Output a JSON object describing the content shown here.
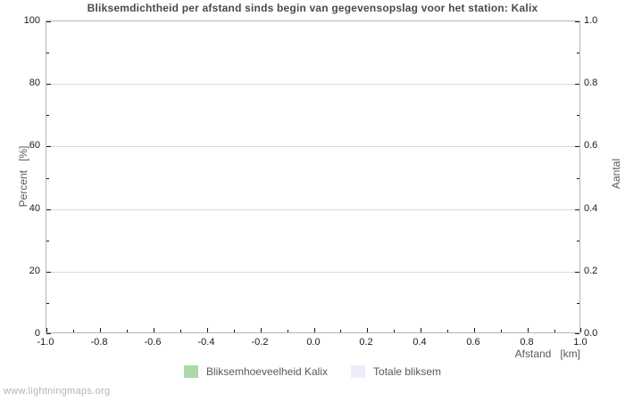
{
  "footer": {
    "watermark": "www.lightningmaps.org"
  },
  "chart_data": {
    "type": "bar",
    "title": "Bliksemdichtheid per afstand sinds begin van gegevensopslag voor het station: Kalix",
    "x": {
      "label": "Afstand   [km]",
      "min": -1.0,
      "max": 1.0,
      "tick_labels": [
        "-1.0",
        "-0.8",
        "-0.6",
        "-0.4",
        "-0.2",
        "0.0",
        "0.2",
        "0.4",
        "0.6",
        "0.8",
        "1.0"
      ],
      "minor_tick_step": 0.1
    },
    "y_left": {
      "label": "Percent   [%]",
      "min": 0,
      "max": 100,
      "tick_labels": [
        "0",
        "20",
        "40",
        "60",
        "80",
        "100"
      ],
      "minor_tick_step": 10
    },
    "y_right": {
      "label": "Aantal",
      "min": 0.0,
      "max": 1.0,
      "tick_labels": [
        "0.0",
        "0.2",
        "0.4",
        "0.6",
        "0.8",
        "1.0"
      ],
      "minor_tick_step": 0.1
    },
    "series": [
      {
        "name": "Bliksemhoeveelheid Kalix",
        "color": "#aad9aa",
        "values": []
      },
      {
        "name": "Totale bliksem",
        "color": "#ececfa",
        "values": []
      }
    ],
    "grid": "horizontal-only",
    "legend_position": "bottom-center",
    "colors": {
      "frame": "#b5b5b5",
      "gridline": "#d9d9d9",
      "tick": "#1a1a1a",
      "title_text": "#4a4a4a",
      "axis_text": "#5a5a5a",
      "watermark_text": "#b5b5b5"
    }
  }
}
